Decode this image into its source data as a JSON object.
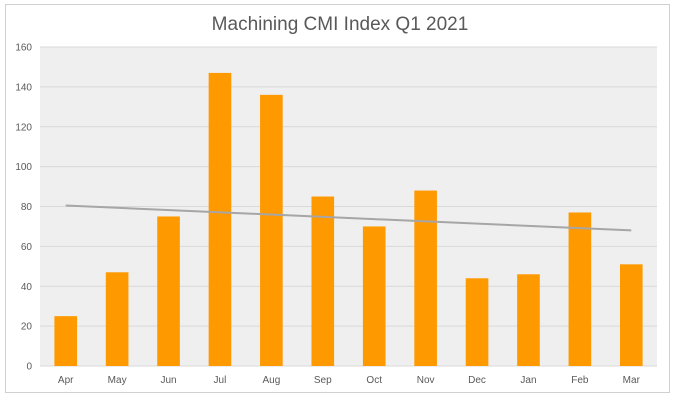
{
  "chart_data": {
    "type": "bar",
    "title": "Machining CMI Index Q1 2021",
    "categories": [
      "Apr",
      "May",
      "Jun",
      "Jul",
      "Aug",
      "Sep",
      "Oct",
      "Nov",
      "Dec",
      "Jan",
      "Feb",
      "Mar"
    ],
    "values": [
      25,
      47,
      75,
      147,
      136,
      85,
      70,
      88,
      44,
      46,
      77,
      51
    ],
    "ylim": [
      0,
      160
    ],
    "yticks": [
      0,
      20,
      40,
      60,
      80,
      100,
      120,
      140,
      160
    ],
    "trendline": {
      "type": "linear",
      "start": 80.5,
      "end": 68
    },
    "grid": true,
    "colors": {
      "bar": "#ff9900",
      "trendline": "#a6a6a6",
      "plot_background": "#efefef",
      "gridline": "#d9d9d9"
    }
  }
}
